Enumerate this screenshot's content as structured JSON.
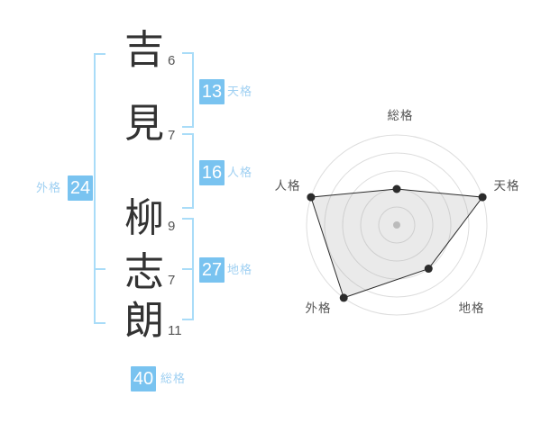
{
  "name": {
    "chars": [
      {
        "char": "吉",
        "strokes": "6"
      },
      {
        "char": "見",
        "strokes": "7"
      },
      {
        "char": "柳",
        "strokes": "9"
      },
      {
        "char": "志",
        "strokes": "7"
      },
      {
        "char": "朗",
        "strokes": "11"
      }
    ]
  },
  "kaku": {
    "tenkaku": {
      "value": "13",
      "label": "天格"
    },
    "jinkaku": {
      "value": "16",
      "label": "人格"
    },
    "chikaku": {
      "value": "27",
      "label": "地格"
    },
    "gaikaku": {
      "value": "24",
      "label": "外格"
    },
    "soukaku": {
      "value": "40",
      "label": "総格"
    }
  },
  "colors": {
    "badge": "#79C3F0",
    "badge_text": "#FFFFFF",
    "kaku_label": "#9FD0F2",
    "bracket": "#A9DCF8",
    "ink": "#333333",
    "ring": "#DDDDDD",
    "chart_line": "#2B2B2B",
    "chart_fill": "rgba(160,160,160,0.22)",
    "center_dot": "#BBBBBB"
  },
  "chart_data": {
    "type": "radar",
    "categories": [
      "総格",
      "天格",
      "地格",
      "外格",
      "人格"
    ],
    "values": [
      2,
      5,
      3,
      5,
      5
    ],
    "max": 5,
    "rings": 5,
    "grid": "concentric-circles",
    "legend": "none",
    "title": ""
  }
}
